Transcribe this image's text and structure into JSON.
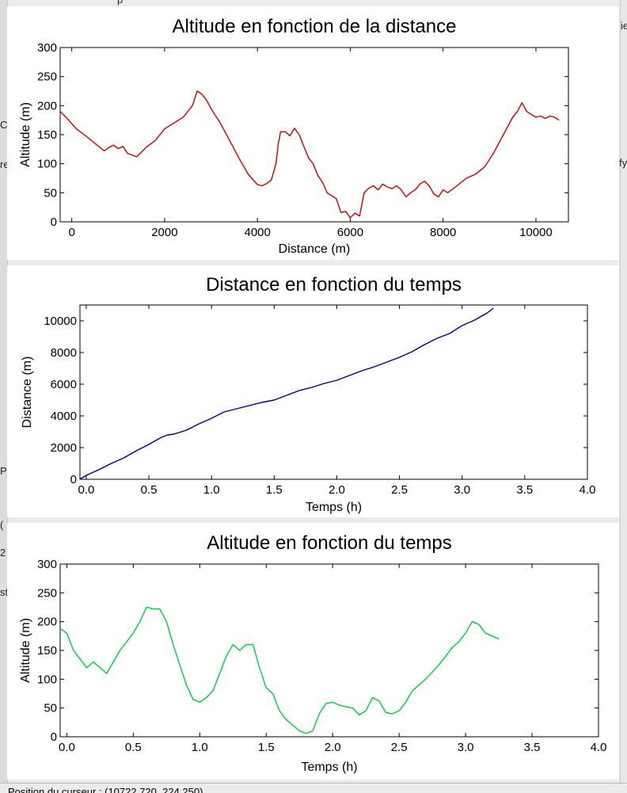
{
  "app": {
    "fragments_left": [
      "p",
      "Co",
      "re",
      "P",
      "(",
      "2",
      "st"
    ],
    "fragments_right": [
      "ie",
      "fy"
    ],
    "status_text": "Position du curseur : (10722.720, 224.250)"
  },
  "chart_data": [
    {
      "type": "line",
      "title": "Altitude en fonction de la distance",
      "xlabel": "Distance (m)",
      "ylabel": "Altitude (m)",
      "xlim": [
        -250,
        10700
      ],
      "ylim": [
        0,
        300
      ],
      "xticks": [
        0,
        2000,
        4000,
        6000,
        8000,
        10000
      ],
      "yticks": [
        0,
        50,
        100,
        150,
        200,
        250,
        300
      ],
      "grid": false,
      "series": [
        {
          "color": "#cc0000",
          "x": [
            -250,
            -100,
            100,
            300,
            500,
            700,
            800,
            900,
            1000,
            1100,
            1200,
            1400,
            1600,
            1800,
            2000,
            2200,
            2400,
            2500,
            2600,
            2700,
            2800,
            2900,
            3000,
            3200,
            3400,
            3600,
            3800,
            4000,
            4100,
            4200,
            4300,
            4400,
            4450,
            4500,
            4600,
            4700,
            4800,
            4900,
            5000,
            5100,
            5200,
            5300,
            5400,
            5450,
            5500,
            5600,
            5700,
            5800,
            5900,
            6000,
            6100,
            6200,
            6300,
            6400,
            6500,
            6600,
            6700,
            6800,
            6900,
            7000,
            7100,
            7200,
            7300,
            7400,
            7500,
            7600,
            7700,
            7800,
            7900,
            8000,
            8100,
            8300,
            8500,
            8700,
            8900,
            9100,
            9300,
            9400,
            9500,
            9600,
            9700,
            9800,
            9900,
            10000,
            10100,
            10200,
            10300,
            10400,
            10500
          ],
          "y": [
            190,
            178,
            160,
            148,
            135,
            122,
            128,
            132,
            126,
            130,
            118,
            112,
            128,
            140,
            160,
            170,
            180,
            190,
            200,
            225,
            220,
            210,
            195,
            170,
            140,
            110,
            82,
            64,
            62,
            66,
            72,
            100,
            135,
            155,
            155,
            148,
            161,
            150,
            130,
            110,
            100,
            80,
            68,
            60,
            50,
            45,
            40,
            16,
            18,
            7,
            15,
            10,
            50,
            58,
            62,
            55,
            65,
            60,
            57,
            62,
            55,
            43,
            50,
            55,
            65,
            70,
            62,
            48,
            43,
            55,
            50,
            62,
            75,
            82,
            95,
            120,
            150,
            165,
            180,
            190,
            205,
            190,
            185,
            180,
            182,
            178,
            182,
            180,
            175
          ]
        }
      ]
    },
    {
      "type": "line",
      "title": "Distance en fonction du temps",
      "xlabel": "Temps (h)",
      "ylabel": "Distance (m)",
      "xlim": [
        -0.05,
        4.0
      ],
      "ylim": [
        0,
        11000
      ],
      "xticks": [
        0.0,
        0.5,
        1.0,
        1.5,
        2.0,
        2.5,
        3.0,
        3.5,
        4.0
      ],
      "yticks": [
        0,
        2000,
        4000,
        6000,
        8000,
        10000
      ],
      "grid": false,
      "series": [
        {
          "color": "#000080",
          "x": [
            -0.05,
            0.0,
            0.1,
            0.2,
            0.3,
            0.4,
            0.5,
            0.6,
            0.65,
            0.7,
            0.8,
            0.9,
            1.0,
            1.1,
            1.2,
            1.3,
            1.4,
            1.5,
            1.6,
            1.7,
            1.8,
            1.9,
            2.0,
            2.1,
            2.2,
            2.3,
            2.4,
            2.5,
            2.6,
            2.7,
            2.8,
            2.9,
            3.0,
            3.1,
            3.2,
            3.25
          ],
          "y": [
            0,
            250,
            600,
            1000,
            1350,
            1800,
            2200,
            2650,
            2800,
            2850,
            3100,
            3500,
            3850,
            4250,
            4450,
            4650,
            4850,
            5000,
            5300,
            5600,
            5800,
            6050,
            6250,
            6550,
            6850,
            7100,
            7400,
            7700,
            8050,
            8500,
            8900,
            9200,
            9700,
            10050,
            10500,
            10800
          ]
        }
      ]
    },
    {
      "type": "line",
      "title": "Altitude en fonction du temps",
      "xlabel": "Temps (h)",
      "ylabel": "Altitude (m)",
      "xlim": [
        -0.05,
        4.0
      ],
      "ylim": [
        0,
        300
      ],
      "xticks": [
        0.0,
        0.5,
        1.0,
        1.5,
        2.0,
        2.5,
        3.0,
        3.5,
        4.0
      ],
      "yticks": [
        0,
        50,
        100,
        150,
        200,
        250,
        300
      ],
      "grid": false,
      "series": [
        {
          "color": "#00cc44",
          "x": [
            -0.05,
            0.0,
            0.05,
            0.1,
            0.15,
            0.2,
            0.25,
            0.3,
            0.35,
            0.4,
            0.5,
            0.55,
            0.6,
            0.65,
            0.7,
            0.75,
            0.8,
            0.85,
            0.9,
            0.95,
            1.0,
            1.05,
            1.1,
            1.15,
            1.2,
            1.25,
            1.3,
            1.35,
            1.4,
            1.45,
            1.5,
            1.55,
            1.6,
            1.65,
            1.7,
            1.75,
            1.8,
            1.85,
            1.9,
            1.95,
            2.0,
            2.05,
            2.1,
            2.15,
            2.2,
            2.25,
            2.3,
            2.35,
            2.4,
            2.45,
            2.5,
            2.55,
            2.6,
            2.7,
            2.8,
            2.9,
            2.95,
            3.0,
            3.05,
            3.1,
            3.15,
            3.2,
            3.25
          ],
          "y": [
            188,
            180,
            150,
            135,
            120,
            130,
            120,
            110,
            130,
            150,
            180,
            200,
            225,
            222,
            222,
            200,
            160,
            125,
            90,
            65,
            60,
            68,
            80,
            110,
            140,
            160,
            150,
            160,
            160,
            120,
            85,
            75,
            45,
            30,
            20,
            10,
            6,
            10,
            40,
            58,
            60,
            55,
            52,
            50,
            38,
            45,
            68,
            62,
            42,
            40,
            45,
            60,
            80,
            100,
            125,
            155,
            165,
            180,
            200,
            195,
            180,
            175,
            170
          ]
        }
      ]
    }
  ]
}
